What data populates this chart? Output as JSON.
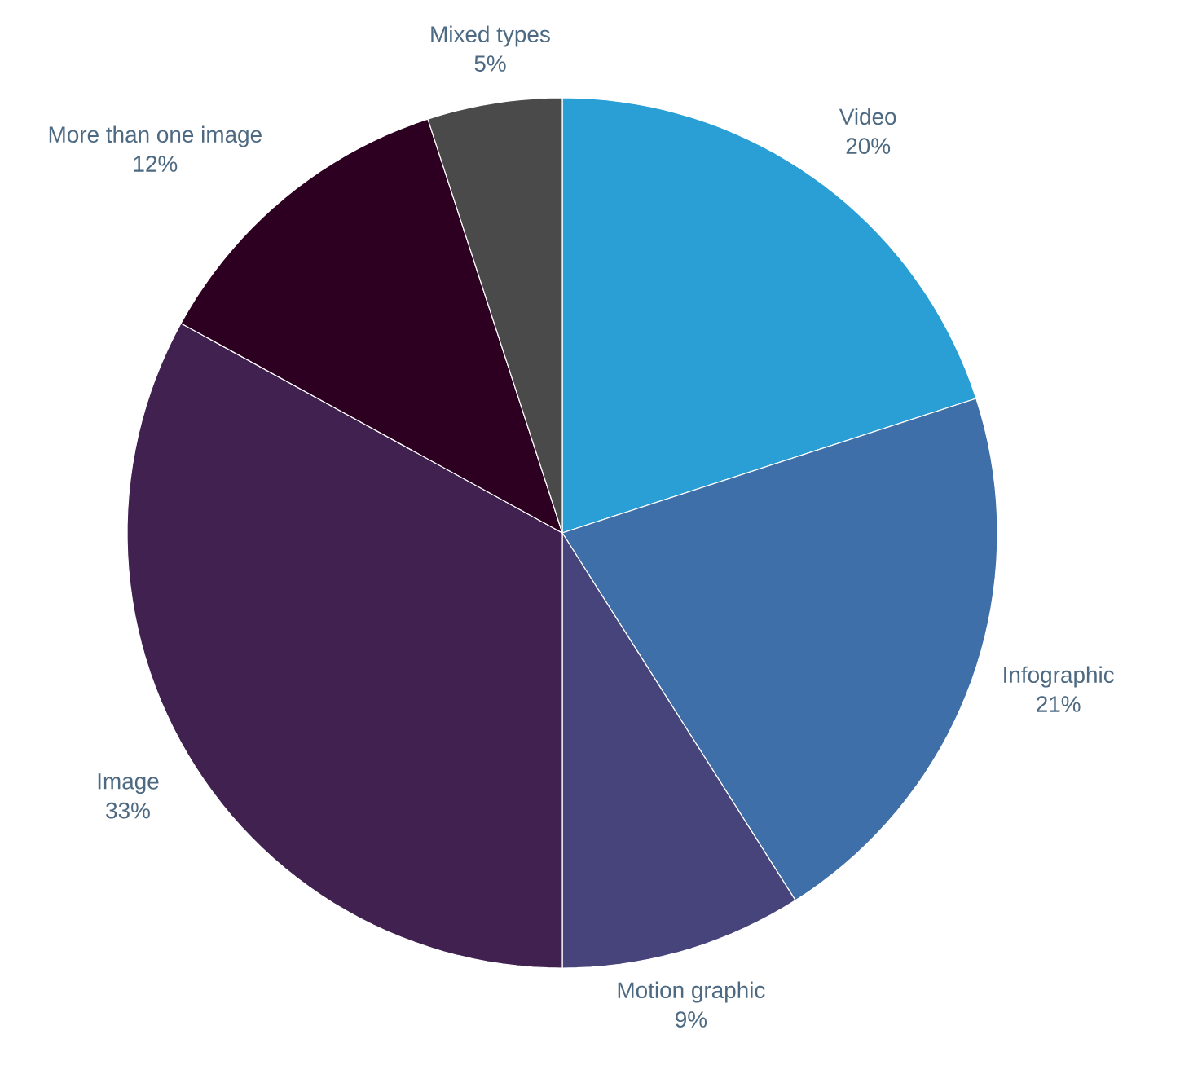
{
  "chart_data": {
    "type": "pie",
    "categories": [
      "Video",
      "Infographic",
      "Motion graphic",
      "Image",
      "More than one image",
      "Mixed types"
    ],
    "values": [
      20,
      21,
      9,
      33,
      12,
      5
    ],
    "value_labels": [
      "20%",
      "21%",
      "9%",
      "33%",
      "12%",
      "5%"
    ],
    "colors": [
      "#299fd5",
      "#3f6fa8",
      "#47447b",
      "#40214f",
      "#2d0021",
      "#4a4a4a"
    ]
  }
}
